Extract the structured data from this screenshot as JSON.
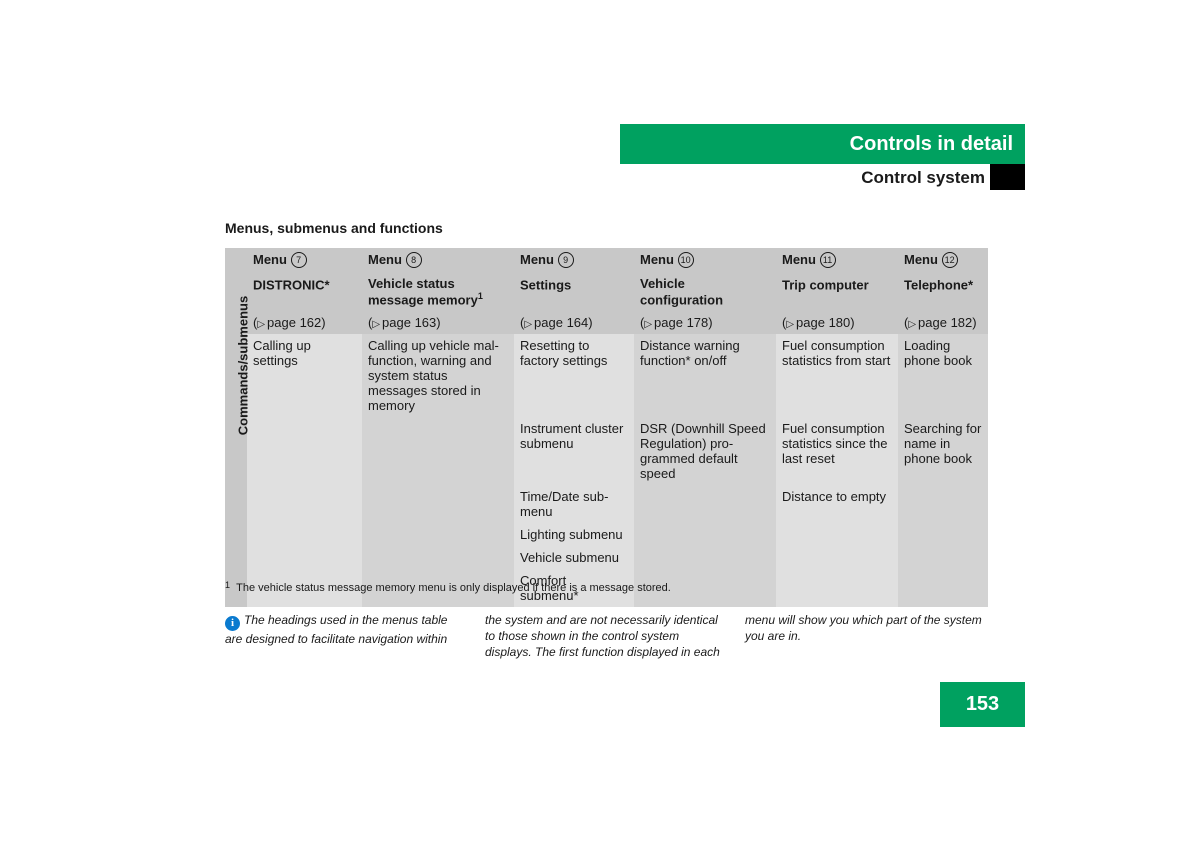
{
  "colors": {
    "accent_green": "#00a160",
    "header_gray": "#c8c8c8",
    "body_odd": "#e0e0e0",
    "body_even": "#d3d3d3",
    "info_blue": "#0a7acf",
    "black": "#000000",
    "text": "#1a1a1a"
  },
  "header": {
    "title": "Controls in detail",
    "subtitle": "Control system"
  },
  "section_title": "Menus, submenus and functions",
  "table": {
    "row_label": "Commands/submenus",
    "columns": [
      {
        "menu_num": "7",
        "menu_label": "Menu",
        "title": "DISTRONIC*",
        "title_sup": "",
        "page_ref": "page 162"
      },
      {
        "menu_num": "8",
        "menu_label": "Menu",
        "title": "Vehicle status message memory",
        "title_sup": "1",
        "page_ref": "page 163"
      },
      {
        "menu_num": "9",
        "menu_label": "Menu",
        "title": "Settings",
        "title_sup": "",
        "page_ref": "page 164"
      },
      {
        "menu_num": "10",
        "menu_label": "Menu",
        "title": "Vehicle configuration",
        "title_sup": "",
        "page_ref": "page 178"
      },
      {
        "menu_num": "11",
        "menu_label": "Menu",
        "title": "Trip computer",
        "title_sup": "",
        "page_ref": "page 180"
      },
      {
        "menu_num": "12",
        "menu_label": "Menu",
        "title": "Telephone*",
        "title_sup": "",
        "page_ref": "page 182"
      }
    ],
    "body_rows": [
      [
        "Calling up settings",
        "Calling up vehicle mal­function, warning and system status messages stored in memory",
        "Resetting to factory settings",
        "Distance warning function* on/off",
        "Fuel consumption statistics from start",
        "Loading phone book"
      ],
      [
        "",
        "",
        "Instrument cluster submenu",
        "DSR (Downhill Speed Regulation) pro­grammed default speed",
        "Fuel consumption statistics since the last reset",
        "Searching for name in phone book"
      ],
      [
        "",
        "",
        "Time/Date sub­menu",
        "",
        "Distance to empty",
        ""
      ],
      [
        "",
        "",
        "Lighting submenu",
        "",
        "",
        ""
      ],
      [
        "",
        "",
        "Vehicle submenu",
        "",
        "",
        ""
      ],
      [
        "",
        "",
        "Comfort submenu*",
        "",
        "",
        ""
      ]
    ]
  },
  "footnote": {
    "marker": "1",
    "text": "The vehicle status message memory menu is only displayed if there is a message stored."
  },
  "info_note": "The headings used in the menus table are designed to facilitate navigation within the system and are not necessarily identical to those shown in the control system displays. The first function displayed in each menu will show you which part of the system you are in.",
  "page_number": "153"
}
